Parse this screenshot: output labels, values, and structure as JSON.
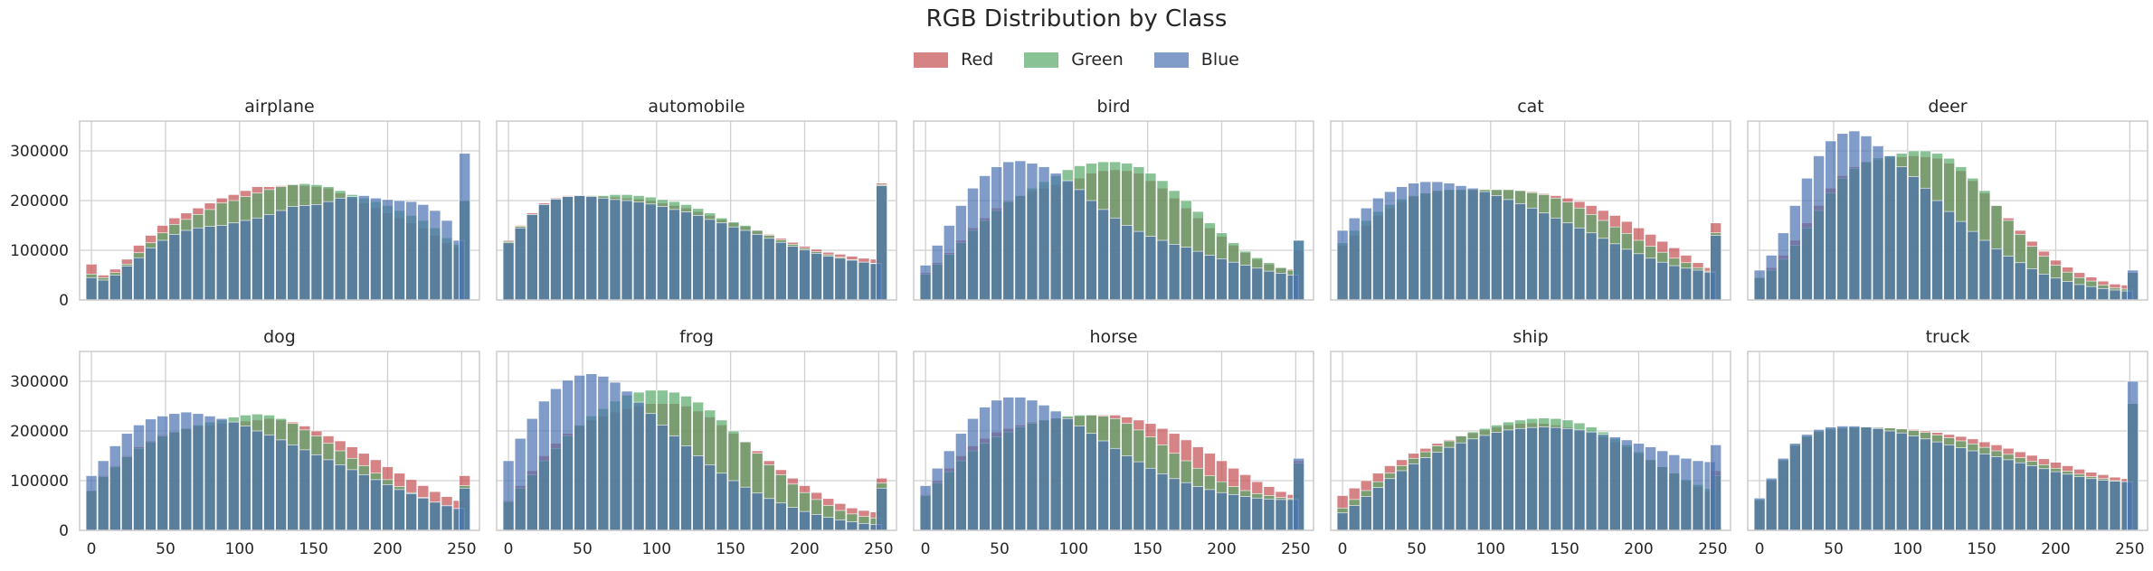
{
  "chart_data": {
    "type": "bar",
    "title": "RGB Distribution by Class",
    "legend": [
      "Red",
      "Green",
      "Blue"
    ],
    "legend_position": "top-center",
    "series_colors": {
      "Red": "#c44e52",
      "Green": "#55a868",
      "Blue": "#4c72b0"
    },
    "bin_centers": [
      0,
      8,
      16,
      24,
      32,
      40,
      48,
      56,
      64,
      72,
      80,
      88,
      96,
      104,
      112,
      120,
      128,
      136,
      144,
      152,
      160,
      168,
      176,
      184,
      192,
      200,
      208,
      216,
      224,
      232,
      240,
      248,
      252
    ],
    "xticks": [
      0,
      50,
      100,
      150,
      200,
      250
    ],
    "xlim": [
      -8,
      262
    ],
    "ylim": [
      0,
      360000
    ],
    "yticks": [
      0,
      100000,
      200000,
      300000
    ],
    "grid": true,
    "panels": [
      {
        "title": "airplane",
        "red": [
          72000,
          50000,
          62000,
          82000,
          110000,
          130000,
          150000,
          165000,
          175000,
          185000,
          195000,
          205000,
          212000,
          220000,
          228000,
          228000,
          230000,
          232000,
          230000,
          228000,
          225000,
          215000,
          205000,
          195000,
          185000,
          175000,
          165000,
          155000,
          145000,
          130000,
          115000,
          108000,
          200000
        ],
        "green": [
          52000,
          45000,
          55000,
          72000,
          95000,
          115000,
          135000,
          152000,
          162000,
          172000,
          182000,
          195000,
          200000,
          208000,
          215000,
          222000,
          228000,
          232000,
          234000,
          232000,
          228000,
          220000,
          212000,
          205000,
          198000,
          190000,
          180000,
          170000,
          160000,
          145000,
          125000,
          112000,
          200000
        ],
        "blue": [
          45000,
          40000,
          50000,
          68000,
          85000,
          105000,
          120000,
          132000,
          140000,
          145000,
          148000,
          150000,
          155000,
          160000,
          165000,
          172000,
          180000,
          188000,
          190000,
          192000,
          198000,
          205000,
          208000,
          210000,
          205000,
          202000,
          200000,
          198000,
          192000,
          180000,
          160000,
          120000,
          295000
        ]
      },
      {
        "title": "automobile",
        "red": [
          120000,
          150000,
          175000,
          195000,
          205000,
          210000,
          210000,
          210000,
          208000,
          207000,
          205000,
          203000,
          200000,
          195000,
          190000,
          185000,
          178000,
          170000,
          162000,
          155000,
          148000,
          140000,
          132000,
          124000,
          116000,
          108000,
          102000,
          96000,
          92000,
          88000,
          84000,
          82000,
          235000
        ],
        "green": [
          118000,
          148000,
          172000,
          192000,
          203000,
          208000,
          210000,
          210000,
          210000,
          212000,
          212000,
          210000,
          207000,
          202000,
          198000,
          192000,
          184000,
          175000,
          165000,
          157000,
          150000,
          140000,
          130000,
          121000,
          112000,
          104000,
          97000,
          91000,
          86000,
          81000,
          76000,
          74000,
          232000
        ],
        "blue": [
          115000,
          145000,
          172000,
          192000,
          203000,
          208000,
          210000,
          208000,
          205000,
          202000,
          200000,
          197000,
          193000,
          188000,
          182000,
          177000,
          170000,
          162000,
          155000,
          147000,
          140000,
          132000,
          124000,
          116000,
          108000,
          101000,
          94000,
          88000,
          84000,
          80000,
          76000,
          73000,
          230000
        ]
      },
      {
        "title": "bird",
        "red": [
          55000,
          75000,
          95000,
          120000,
          145000,
          165000,
          185000,
          200000,
          210000,
          220000,
          225000,
          232000,
          238000,
          245000,
          255000,
          260000,
          262000,
          260000,
          255000,
          240000,
          225000,
          205000,
          185000,
          165000,
          145000,
          128000,
          110000,
          95000,
          82000,
          72000,
          65000,
          62000,
          100000
        ],
        "green": [
          52000,
          72000,
          92000,
          115000,
          140000,
          160000,
          180000,
          198000,
          210000,
          225000,
          238000,
          250000,
          262000,
          270000,
          275000,
          278000,
          278000,
          275000,
          268000,
          255000,
          240000,
          220000,
          200000,
          178000,
          155000,
          135000,
          115000,
          98000,
          85000,
          75000,
          65000,
          60000,
          120000
        ],
        "blue": [
          70000,
          110000,
          150000,
          190000,
          225000,
          250000,
          268000,
          278000,
          280000,
          275000,
          268000,
          255000,
          240000,
          222000,
          200000,
          182000,
          165000,
          150000,
          138000,
          128000,
          120000,
          112000,
          106000,
          98000,
          90000,
          83000,
          76000,
          70000,
          64000,
          58000,
          54000,
          50000,
          120000
        ]
      },
      {
        "title": "cat",
        "red": [
          110000,
          130000,
          150000,
          170000,
          185000,
          198000,
          208000,
          215000,
          220000,
          222000,
          222000,
          222000,
          222000,
          222000,
          222000,
          220000,
          218000,
          214000,
          210000,
          205000,
          198000,
          190000,
          180000,
          170000,
          158000,
          145000,
          132000,
          118000,
          105000,
          90000,
          75000,
          65000,
          155000
        ],
        "green": [
          115000,
          140000,
          160000,
          178000,
          192000,
          203000,
          210000,
          215000,
          220000,
          222000,
          222000,
          222000,
          222000,
          222000,
          222000,
          220000,
          216000,
          212000,
          205000,
          197000,
          185000,
          172000,
          160000,
          147000,
          134000,
          120000,
          108000,
          96000,
          84000,
          75000,
          65000,
          58000,
          135000
        ],
        "blue": [
          140000,
          165000,
          185000,
          205000,
          218000,
          228000,
          235000,
          238000,
          238000,
          235000,
          230000,
          225000,
          218000,
          210000,
          202000,
          194000,
          185000,
          175000,
          165000,
          155000,
          145000,
          135000,
          124000,
          113000,
          102000,
          93000,
          84000,
          76000,
          69000,
          64000,
          60000,
          56000,
          130000
        ]
      },
      {
        "title": "deer",
        "red": [
          45000,
          65000,
          90000,
          120000,
          155000,
          190000,
          225000,
          250000,
          268000,
          278000,
          282000,
          285000,
          288000,
          290000,
          288000,
          285000,
          275000,
          260000,
          240000,
          215000,
          190000,
          165000,
          140000,
          118000,
          98000,
          80000,
          66000,
          55000,
          46000,
          38000,
          32000,
          30000,
          55000
        ],
        "green": [
          45000,
          60000,
          82000,
          110000,
          145000,
          180000,
          215000,
          245000,
          265000,
          278000,
          286000,
          290000,
          295000,
          300000,
          300000,
          295000,
          285000,
          268000,
          245000,
          220000,
          190000,
          160000,
          132000,
          108000,
          88000,
          70000,
          56000,
          45000,
          38000,
          30000,
          24000,
          22000,
          55000
        ],
        "blue": [
          60000,
          90000,
          135000,
          190000,
          245000,
          290000,
          320000,
          335000,
          340000,
          330000,
          310000,
          290000,
          268000,
          248000,
          225000,
          200000,
          178000,
          158000,
          138000,
          120000,
          103000,
          88000,
          75000,
          63000,
          52000,
          44000,
          37000,
          31000,
          27000,
          23000,
          20000,
          18000,
          60000
        ]
      },
      {
        "title": "dog",
        "red": [
          80000,
          110000,
          130000,
          150000,
          168000,
          180000,
          192000,
          198000,
          205000,
          210000,
          212000,
          215000,
          218000,
          220000,
          222000,
          225000,
          222000,
          218000,
          210000,
          200000,
          190000,
          180000,
          168000,
          155000,
          142000,
          128000,
          115000,
          102000,
          90000,
          78000,
          68000,
          60000,
          110000
        ],
        "green": [
          80000,
          108000,
          128000,
          148000,
          165000,
          178000,
          190000,
          198000,
          205000,
          212000,
          218000,
          222000,
          228000,
          232000,
          234000,
          232000,
          225000,
          215000,
          202000,
          190000,
          175000,
          160000,
          145000,
          130000,
          115000,
          102000,
          88000,
          76000,
          66000,
          56000,
          48000,
          42000,
          90000
        ],
        "blue": [
          110000,
          140000,
          170000,
          195000,
          212000,
          224000,
          230000,
          235000,
          238000,
          235000,
          230000,
          225000,
          218000,
          210000,
          200000,
          192000,
          182000,
          172000,
          162000,
          152000,
          142000,
          132000,
          122000,
          112000,
          102000,
          92000,
          82000,
          74000,
          65000,
          57000,
          50000,
          44000,
          85000
        ]
      },
      {
        "title": "frog",
        "red": [
          60000,
          90000,
          120000,
          150000,
          175000,
          195000,
          210000,
          222000,
          230000,
          238000,
          245000,
          250000,
          255000,
          255000,
          255000,
          250000,
          240000,
          228000,
          212000,
          195000,
          178000,
          160000,
          140000,
          122000,
          105000,
          90000,
          76000,
          64000,
          54000,
          45000,
          40000,
          37000,
          105000
        ],
        "green": [
          58000,
          85000,
          112000,
          140000,
          165000,
          190000,
          212000,
          230000,
          245000,
          260000,
          272000,
          278000,
          282000,
          282000,
          278000,
          270000,
          258000,
          242000,
          222000,
          200000,
          178000,
          155000,
          132000,
          112000,
          93000,
          76000,
          62000,
          50000,
          40000,
          33000,
          28000,
          25000,
          95000
        ],
        "blue": [
          140000,
          185000,
          225000,
          260000,
          285000,
          302000,
          312000,
          315000,
          310000,
          298000,
          280000,
          258000,
          235000,
          212000,
          190000,
          170000,
          150000,
          132000,
          115000,
          100000,
          87000,
          75000,
          64000,
          55000,
          46000,
          38000,
          32000,
          26000,
          21000,
          17000,
          14000,
          12000,
          85000
        ]
      },
      {
        "title": "horse",
        "red": [
          72000,
          100000,
          125000,
          150000,
          170000,
          185000,
          198000,
          205000,
          212000,
          218000,
          222000,
          225000,
          228000,
          230000,
          232000,
          232000,
          232000,
          228000,
          222000,
          215000,
          205000,
          195000,
          182000,
          168000,
          155000,
          140000,
          125000,
          112000,
          98000,
          88000,
          78000,
          72000,
          140000
        ],
        "green": [
          70000,
          95000,
          118000,
          140000,
          160000,
          175000,
          188000,
          198000,
          208000,
          216000,
          222000,
          226000,
          230000,
          232000,
          232000,
          230000,
          225000,
          215000,
          202000,
          188000,
          172000,
          155000,
          140000,
          125000,
          110000,
          98000,
          88000,
          80000,
          74000,
          70000,
          66000,
          64000,
          135000
        ],
        "blue": [
          90000,
          125000,
          160000,
          195000,
          225000,
          248000,
          262000,
          268000,
          268000,
          262000,
          252000,
          240000,
          225000,
          210000,
          195000,
          180000,
          165000,
          150000,
          138000,
          125000,
          114000,
          104000,
          96000,
          88000,
          82000,
          76000,
          72000,
          68000,
          65000,
          63000,
          62000,
          62000,
          145000
        ]
      },
      {
        "title": "ship",
        "red": [
          70000,
          85000,
          100000,
          115000,
          130000,
          142000,
          155000,
          165000,
          175000,
          182000,
          190000,
          196000,
          202000,
          208000,
          212000,
          215000,
          216000,
          215000,
          212000,
          208000,
          203000,
          196000,
          188000,
          178000,
          168000,
          155000,
          142000,
          128000,
          115000,
          100000,
          88000,
          78000,
          120000
        ],
        "green": [
          45000,
          62000,
          80000,
          98000,
          115000,
          130000,
          145000,
          158000,
          170000,
          180000,
          190000,
          198000,
          205000,
          212000,
          218000,
          222000,
          225000,
          226000,
          225000,
          222000,
          216000,
          208000,
          198000,
          185000,
          172000,
          158000,
          142000,
          128000,
          115000,
          102000,
          92000,
          84000,
          110000
        ],
        "blue": [
          35000,
          50000,
          68000,
          86000,
          104000,
          120000,
          134000,
          146000,
          157000,
          167000,
          176000,
          184000,
          191000,
          197000,
          202000,
          205000,
          207000,
          208000,
          207000,
          205000,
          202000,
          198000,
          193000,
          188000,
          182000,
          175000,
          168000,
          160000,
          152000,
          145000,
          140000,
          138000,
          172000
        ]
      },
      {
        "title": "truck",
        "red": [
          60000,
          100000,
          140000,
          170000,
          188000,
          198000,
          203000,
          205000,
          206000,
          207000,
          207000,
          206000,
          205000,
          203000,
          200000,
          197000,
          193000,
          189000,
          184000,
          178000,
          172000,
          165000,
          158000,
          151000,
          144000,
          137000,
          130000,
          123000,
          117000,
          112000,
          107000,
          104000,
          255000
        ],
        "green": [
          62000,
          102000,
          142000,
          172000,
          190000,
          200000,
          205000,
          207000,
          208000,
          208000,
          207000,
          206000,
          204000,
          201000,
          197000,
          192000,
          186000,
          180000,
          174000,
          167000,
          160000,
          153000,
          146000,
          139000,
          132000,
          125000,
          119000,
          113000,
          108000,
          104000,
          100000,
          98000,
          255000
        ],
        "blue": [
          65000,
          105000,
          145000,
          175000,
          193000,
          203000,
          208000,
          210000,
          210000,
          208000,
          205000,
          200000,
          196000,
          190000,
          184000,
          178000,
          172000,
          166000,
          160000,
          154000,
          148000,
          142000,
          136000,
          130000,
          124000,
          118000,
          113000,
          108000,
          104000,
          101000,
          99000,
          98000,
          300000
        ]
      }
    ]
  }
}
